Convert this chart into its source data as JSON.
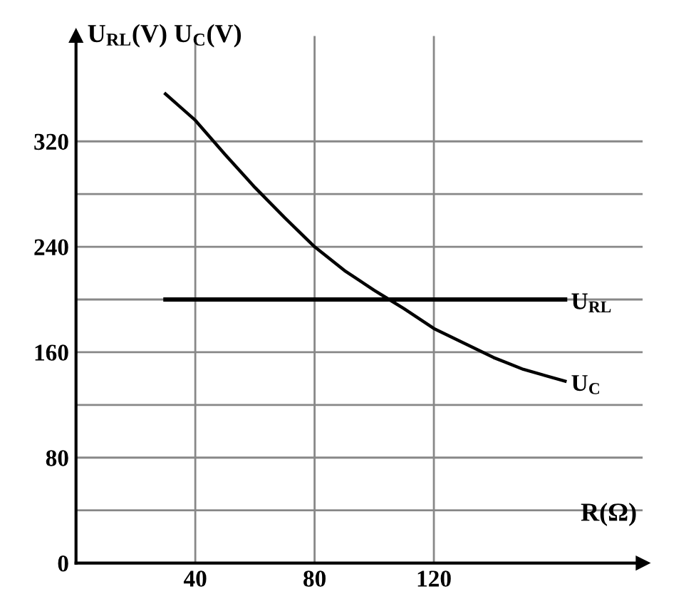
{
  "chart_data": {
    "type": "line",
    "xlabel": "R(Ω)",
    "ylabel": "U$_{RL}$(V) U$_{C}$(V)",
    "series": [
      {
        "name": "U$_{RL}$",
        "color": "#000000",
        "x": [
          30,
          164
        ],
        "values": [
          200,
          200
        ]
      },
      {
        "name": "U$_{C}$",
        "color": "#000000",
        "x": [
          30,
          40,
          50,
          60,
          70,
          80,
          90,
          100,
          105,
          110,
          120,
          130,
          140,
          150,
          164
        ],
        "values": [
          356,
          336,
          310,
          285,
          262,
          240,
          222,
          207,
          200,
          193,
          178,
          167,
          156,
          147,
          138
        ]
      }
    ],
    "xlim": [
      0,
      190
    ],
    "ylim": [
      0,
      400
    ],
    "xticks": [
      40,
      80,
      120
    ],
    "yticks": [
      0,
      {
        "value": 40,
        "label": null
      },
      80,
      {
        "value": 120,
        "label": null
      },
      160,
      {
        "value": 200,
        "label": null
      },
      240,
      {
        "value": 280,
        "label": null
      },
      320
    ],
    "grid": true,
    "marker": "none",
    "line_style": "solid",
    "legend": false
  }
}
